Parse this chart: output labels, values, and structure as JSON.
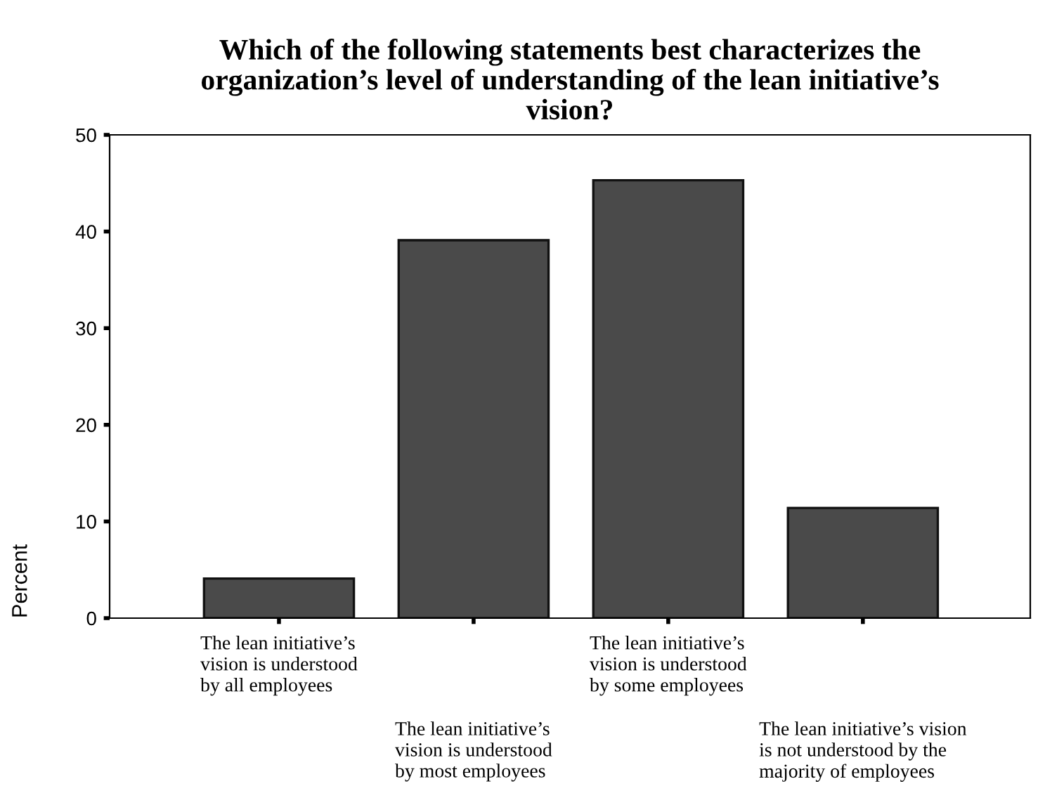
{
  "chart_data": {
    "type": "bar",
    "title": "Which of the following statements best characterizes the\norganization’s level of understanding of the lean initiative’s\nvision?",
    "categories": [
      "The lean initiative’s\nvision is understood\nby all employees",
      "The lean initiative’s\nvision is understood\nby most employees",
      "The lean initiative’s\nvision is understood\nby some employees",
      "The lean initiative’s vision\nis not understood by the\nmajority of employees"
    ],
    "values": [
      4.1,
      39.1,
      45.3,
      11.4
    ],
    "color": "#4a4a4a",
    "ylabel": "Percent",
    "ylim": [
      0,
      50
    ],
    "yticks": [
      0,
      10,
      20,
      30,
      40,
      50
    ],
    "grid": false,
    "legend": false
  }
}
